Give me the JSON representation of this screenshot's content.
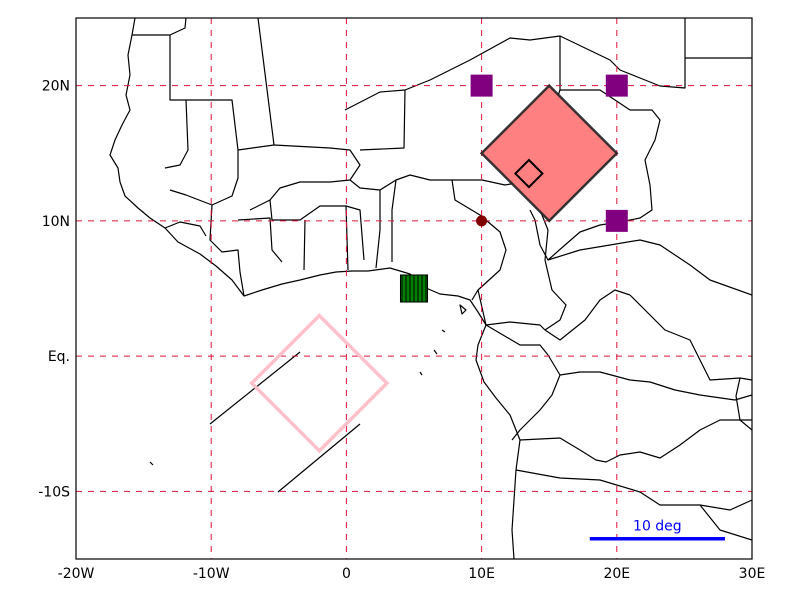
{
  "map": {
    "lon_range": [
      -20,
      30
    ],
    "lat_range": [
      -15,
      25
    ],
    "grid": {
      "style": "dashed",
      "color": "#dc143c"
    },
    "meridians": [
      {
        "lon": -20,
        "label": "-20W"
      },
      {
        "lon": -10,
        "label": "-10W"
      },
      {
        "lon": 0,
        "label": "0"
      },
      {
        "lon": 10,
        "label": "10E"
      },
      {
        "lon": 20,
        "label": "20E"
      },
      {
        "lon": 30,
        "label": "30E"
      }
    ],
    "parallels": [
      {
        "lat": 20,
        "label": "20N"
      },
      {
        "lat": 10,
        "label": "10N"
      },
      {
        "lat": 0,
        "label": "Eq."
      },
      {
        "lat": -10,
        "label": "-10S"
      }
    ],
    "markers": {
      "purple_squares": {
        "color": "#800080",
        "points": [
          [
            10,
            20
          ],
          [
            20,
            20
          ],
          [
            20,
            10
          ]
        ]
      },
      "red_dot": {
        "color": "#800000",
        "point": [
          10,
          10
        ]
      }
    },
    "shapes": {
      "red_diamond": {
        "center": [
          15,
          15
        ],
        "half_size": 5,
        "fill": "#ff8080",
        "edge": "#222222"
      },
      "small_diamond": {
        "center": [
          13.5,
          13.5
        ],
        "half_size": 1,
        "edge": "#000000"
      },
      "pink_diamond": {
        "center": [
          -2,
          -2
        ],
        "half_size": 5,
        "edge": "#ffc0cb"
      },
      "hatched_box": {
        "lon": [
          4,
          6
        ],
        "lat": [
          4,
          6
        ],
        "fill": "#008000",
        "hatch": "#000000"
      }
    },
    "scale_bar": {
      "label": "10 deg",
      "color": "#0000ff",
      "lon": [
        18,
        28
      ],
      "lat": -13.5
    }
  }
}
